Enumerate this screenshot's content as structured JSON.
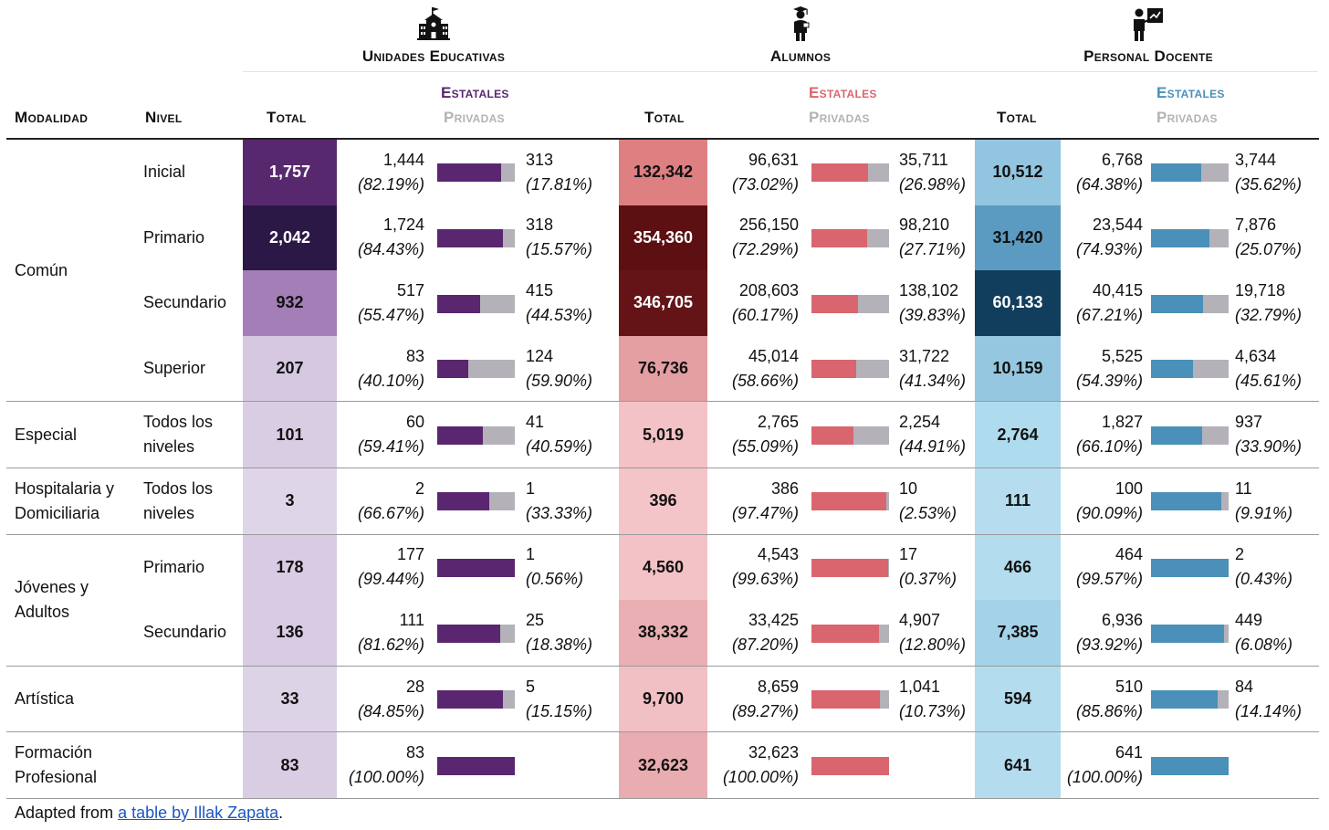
{
  "groups": {
    "unidades": "Unidades Educativas",
    "alumnos": "Alumnos",
    "docentes": "Personal Docente"
  },
  "icons": {
    "unidades": "school-building-icon",
    "alumnos": "graduate-student-icon",
    "docentes": "teacher-at-board-icon"
  },
  "columns": {
    "modalidad": "Modalidad",
    "nivel": "Nivel",
    "total": "Total",
    "estatales": "Estatales",
    "privadas": "Privadas"
  },
  "colors": {
    "estatales_unidades": "#5a2670",
    "estatales_alumnos": "#d9656f",
    "estatales_docentes": "#4a90b8",
    "privadas": "#b4b1b9"
  },
  "rows": [
    {
      "modalidad": "Común",
      "nivel": "Inicial",
      "u": {
        "total": "1,757",
        "est": "1,444",
        "est_pct": "(82.19%)",
        "priv": "313",
        "priv_pct": "(17.81%)",
        "share": 82.19,
        "bg": "#58286e",
        "fg": "#ffffff"
      },
      "a": {
        "total": "132,342",
        "est": "96,631",
        "est_pct": "(73.02%)",
        "priv": "35,711",
        "priv_pct": "(26.98%)",
        "share": 73.02,
        "bg": "#de7f82",
        "fg": "#111111"
      },
      "d": {
        "total": "10,512",
        "est": "6,768",
        "est_pct": "(64.38%)",
        "priv": "3,744",
        "priv_pct": "(35.62%)",
        "share": 64.38,
        "bg": "#92c5df",
        "fg": "#111111"
      }
    },
    {
      "modalidad": "",
      "nivel": "Primario",
      "u": {
        "total": "2,042",
        "est": "1,724",
        "est_pct": "(84.43%)",
        "priv": "318",
        "priv_pct": "(15.57%)",
        "share": 84.43,
        "bg": "#2c1847",
        "fg": "#ffffff"
      },
      "a": {
        "total": "354,360",
        "est": "256,150",
        "est_pct": "(72.29%)",
        "priv": "98,210",
        "priv_pct": "(27.71%)",
        "share": 72.29,
        "bg": "#5c1011",
        "fg": "#ffffff"
      },
      "d": {
        "total": "31,420",
        "est": "23,544",
        "est_pct": "(74.93%)",
        "priv": "7,876",
        "priv_pct": "(25.07%)",
        "share": 74.93,
        "bg": "#5b9ac1",
        "fg": "#111111"
      }
    },
    {
      "modalidad": "",
      "nivel": "Secundario",
      "u": {
        "total": "932",
        "est": "517",
        "est_pct": "(55.47%)",
        "priv": "415",
        "priv_pct": "(44.53%)",
        "share": 55.47,
        "bg": "#a47fb7",
        "fg": "#111111"
      },
      "a": {
        "total": "346,705",
        "est": "208,603",
        "est_pct": "(60.17%)",
        "priv": "138,102",
        "priv_pct": "(39.83%)",
        "share": 60.17,
        "bg": "#641416",
        "fg": "#ffffff"
      },
      "d": {
        "total": "60,133",
        "est": "40,415",
        "est_pct": "(67.21%)",
        "priv": "19,718",
        "priv_pct": "(32.79%)",
        "share": 67.21,
        "bg": "#123e5e",
        "fg": "#ffffff"
      }
    },
    {
      "modalidad": "",
      "nivel": "Superior",
      "u": {
        "total": "207",
        "est": "83",
        "est_pct": "(40.10%)",
        "priv": "124",
        "priv_pct": "(59.90%)",
        "share": 40.1,
        "bg": "#d6c8e1",
        "fg": "#111111"
      },
      "a": {
        "total": "76,736",
        "est": "45,014",
        "est_pct": "(58.66%)",
        "priv": "31,722",
        "priv_pct": "(41.34%)",
        "share": 58.66,
        "bg": "#e49fa2",
        "fg": "#111111"
      },
      "d": {
        "total": "10,159",
        "est": "5,525",
        "est_pct": "(54.39%)",
        "priv": "4,634",
        "priv_pct": "(45.61%)",
        "share": 54.39,
        "bg": "#95c8e0",
        "fg": "#111111"
      }
    },
    {
      "modalidad": "Especial",
      "nivel": "Todos los niveles",
      "u": {
        "total": "101",
        "est": "60",
        "est_pct": "(59.41%)",
        "priv": "41",
        "priv_pct": "(40.59%)",
        "share": 59.41,
        "bg": "#d9cde4",
        "fg": "#111111"
      },
      "a": {
        "total": "5,019",
        "est": "2,765",
        "est_pct": "(55.09%)",
        "priv": "2,254",
        "priv_pct": "(44.91%)",
        "share": 55.09,
        "bg": "#f2c2c6",
        "fg": "#111111"
      },
      "d": {
        "total": "2,764",
        "est": "1,827",
        "est_pct": "(66.10%)",
        "priv": "937",
        "priv_pct": "(33.90%)",
        "share": 66.1,
        "bg": "#afdbee",
        "fg": "#111111"
      }
    },
    {
      "modalidad": "Hospitalaria y Domiciliaria",
      "nivel": "Todos los niveles",
      "u": {
        "total": "3",
        "est": "2",
        "est_pct": "(66.67%)",
        "priv": "1",
        "priv_pct": "(33.33%)",
        "share": 66.67,
        "bg": "#ded6e8",
        "fg": "#111111"
      },
      "a": {
        "total": "396",
        "est": "386",
        "est_pct": "(97.47%)",
        "priv": "10",
        "priv_pct": "(2.53%)",
        "share": 97.47,
        "bg": "#f3c5c9",
        "fg": "#111111"
      },
      "d": {
        "total": "111",
        "est": "100",
        "est_pct": "(90.09%)",
        "priv": "11",
        "priv_pct": "(9.91%)",
        "share": 90.09,
        "bg": "#b5ddef",
        "fg": "#111111"
      }
    },
    {
      "modalidad": "Jóvenes y Adultos",
      "nivel": "Primario",
      "u": {
        "total": "178",
        "est": "177",
        "est_pct": "(99.44%)",
        "priv": "1",
        "priv_pct": "(0.56%)",
        "share": 99.44,
        "bg": "#d8cbe3",
        "fg": "#111111"
      },
      "a": {
        "total": "4,560",
        "est": "4,543",
        "est_pct": "(99.63%)",
        "priv": "17",
        "priv_pct": "(0.37%)",
        "share": 99.63,
        "bg": "#f2c2c6",
        "fg": "#111111"
      },
      "d": {
        "total": "466",
        "est": "464",
        "est_pct": "(99.57%)",
        "priv": "2",
        "priv_pct": "(0.43%)",
        "share": 99.57,
        "bg": "#b3dcef",
        "fg": "#111111"
      }
    },
    {
      "modalidad": "",
      "nivel": "Secundario",
      "u": {
        "total": "136",
        "est": "111",
        "est_pct": "(81.62%)",
        "priv": "25",
        "priv_pct": "(18.38%)",
        "share": 81.62,
        "bg": "#d8cbe3",
        "fg": "#111111"
      },
      "a": {
        "total": "38,332",
        "est": "33,425",
        "est_pct": "(87.20%)",
        "priv": "4,907",
        "priv_pct": "(12.80%)",
        "share": 87.2,
        "bg": "#eaafb3",
        "fg": "#111111"
      },
      "d": {
        "total": "7,385",
        "est": "6,936",
        "est_pct": "(93.92%)",
        "priv": "449",
        "priv_pct": "(6.08%)",
        "share": 93.92,
        "bg": "#a4d2e9",
        "fg": "#111111"
      }
    },
    {
      "modalidad": "Artística",
      "nivel": "",
      "u": {
        "total": "33",
        "est": "28",
        "est_pct": "(84.85%)",
        "priv": "5",
        "priv_pct": "(15.15%)",
        "share": 84.85,
        "bg": "#ddd3e7",
        "fg": "#111111"
      },
      "a": {
        "total": "9,700",
        "est": "8,659",
        "est_pct": "(89.27%)",
        "priv": "1,041",
        "priv_pct": "(10.73%)",
        "share": 89.27,
        "bg": "#f1c0c4",
        "fg": "#111111"
      },
      "d": {
        "total": "594",
        "est": "510",
        "est_pct": "(85.86%)",
        "priv": "84",
        "priv_pct": "(14.14%)",
        "share": 85.86,
        "bg": "#b4dcef",
        "fg": "#111111"
      }
    },
    {
      "modalidad": "Formación Profesional",
      "nivel": "",
      "u": {
        "total": "83",
        "est": "83",
        "est_pct": "(100.00%)",
        "priv": "",
        "priv_pct": "",
        "share": 100,
        "bg": "#d9cde4",
        "fg": "#111111"
      },
      "a": {
        "total": "32,623",
        "est": "32,623",
        "est_pct": "(100.00%)",
        "priv": "",
        "priv_pct": "",
        "share": 100,
        "bg": "#e9acb0",
        "fg": "#111111"
      },
      "d": {
        "total": "641",
        "est": "641",
        "est_pct": "(100.00%)",
        "priv": "",
        "priv_pct": "",
        "share": 100,
        "bg": "#b4dcef",
        "fg": "#111111"
      }
    }
  ],
  "footer": {
    "prefix": "Adapted from ",
    "link_text": "a table by Illak Zapata",
    "suffix": "."
  }
}
